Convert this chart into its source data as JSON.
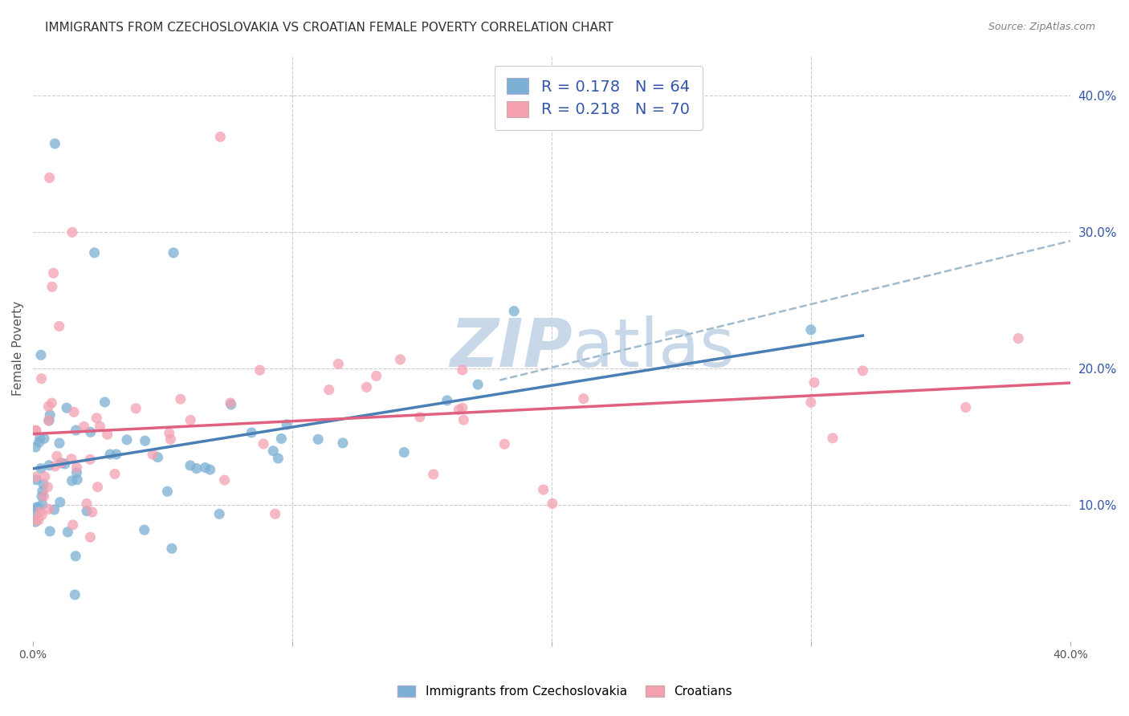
{
  "title": "IMMIGRANTS FROM CZECHOSLOVAKIA VS CROATIAN FEMALE POVERTY CORRELATION CHART",
  "source": "Source: ZipAtlas.com",
  "ylabel": "Female Poverty",
  "right_yticks": [
    "10.0%",
    "20.0%",
    "30.0%",
    "40.0%"
  ],
  "right_ytick_vals": [
    0.1,
    0.2,
    0.3,
    0.4
  ],
  "blue_color": "#7BAFD4",
  "pink_color": "#F4A0B0",
  "blue_line_color": "#4A7FB5",
  "pink_line_color": "#E06080",
  "dashed_line_color": "#A0BBCC",
  "legend_text_color": "#3355AA",
  "title_color": "#333333",
  "watermark_color": "#C8D8E8",
  "seed": 42,
  "blue_N": 64,
  "pink_N": 70,
  "xmin": 0.0,
  "xmax": 0.4,
  "ymin": 0.0,
  "ymax": 0.43,
  "grid_color": "#CCCCCC",
  "background_color": "#FFFFFF"
}
